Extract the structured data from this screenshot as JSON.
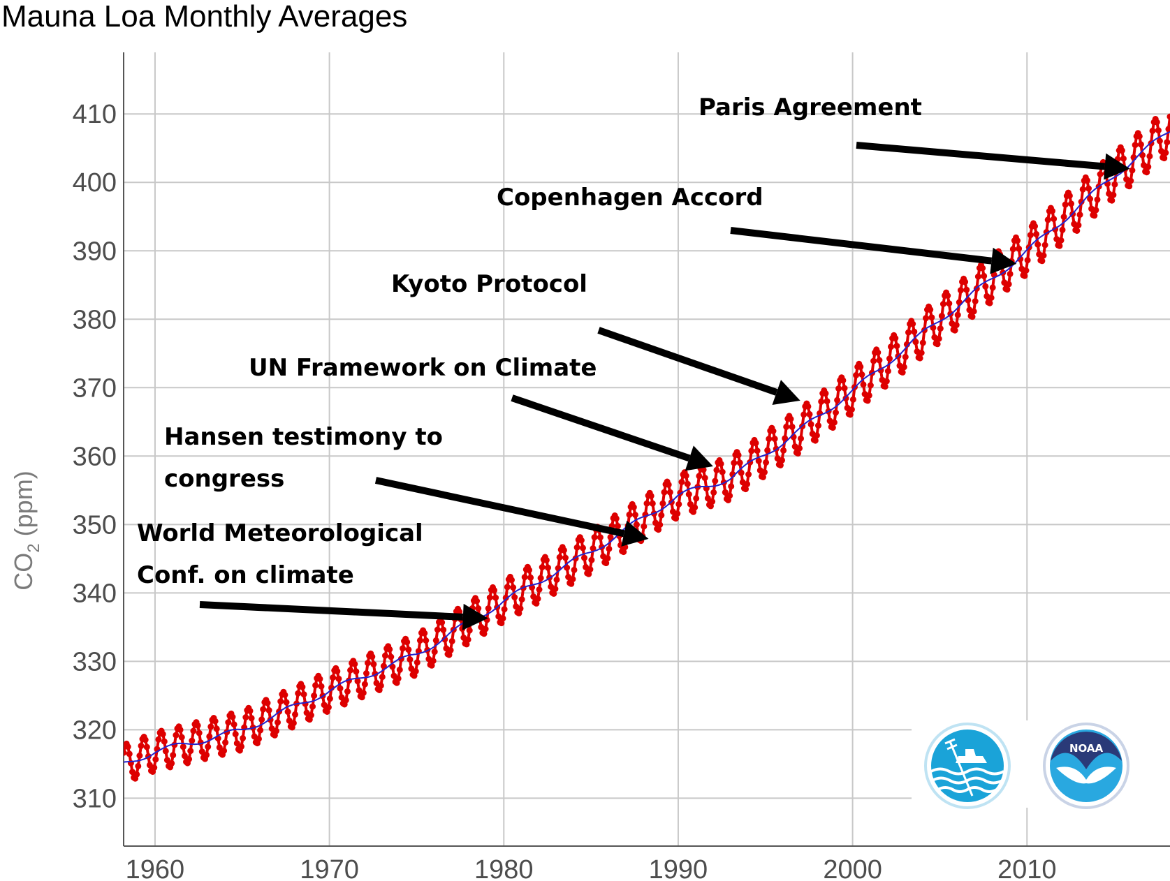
{
  "chart_data": {
    "type": "line",
    "title": "Mauna Loa Monthly Averages",
    "xlabel": "",
    "ylabel": "CO",
    "ylabel_subscript": "2",
    "ylabel_unit": " (ppm)",
    "xlim": [
      1958.2,
      2018.2
    ],
    "ylim": [
      303,
      419
    ],
    "grid": true,
    "x_ticks": [
      {
        "value": 1960,
        "label": "1960"
      },
      {
        "value": 1970,
        "label": "1970"
      },
      {
        "value": 1980,
        "label": "1980"
      },
      {
        "value": 1990,
        "label": "1990"
      },
      {
        "value": 2000,
        "label": "2000"
      },
      {
        "value": 2010,
        "label": "2010"
      }
    ],
    "y_ticks": [
      {
        "value": 310,
        "label": "310"
      },
      {
        "value": 320,
        "label": "320"
      },
      {
        "value": 330,
        "label": "330"
      },
      {
        "value": 340,
        "label": "340"
      },
      {
        "value": 350,
        "label": "350"
      },
      {
        "value": 360,
        "label": "360"
      },
      {
        "value": 370,
        "label": "370"
      },
      {
        "value": 380,
        "label": "380"
      },
      {
        "value": 390,
        "label": "390"
      },
      {
        "value": 400,
        "label": "400"
      },
      {
        "value": 410,
        "label": "410"
      }
    ],
    "series": [
      {
        "role": "monthly-mean",
        "color": "#dd0000",
        "marker": "circle",
        "trend_anchors": {
          "x": [
            1958.2,
            1960,
            1965,
            1970,
            1975,
            1980,
            1985,
            1990,
            1993,
            1997,
            2000,
            2005,
            2010,
            2015,
            2018.2
          ],
          "y": [
            315.0,
            316.8,
            319.9,
            325.7,
            331.0,
            338.8,
            346.0,
            354.2,
            356.8,
            363.8,
            369.5,
            379.9,
            389.9,
            401.0,
            407.6
          ]
        },
        "seasonal_amplitude": [
          {
            "x": 1958,
            "half_range": 2.8
          },
          {
            "x": 2018,
            "half_range": 3.4
          }
        ]
      },
      {
        "role": "deseasonalized-trend",
        "color": "#2222cc",
        "from": "trend_anchors"
      }
    ],
    "annotations": [
      {
        "lines": [
          "Paris Agreement"
        ],
        "points_to_year": 2015.9,
        "points_to_ppm": 402.0
      },
      {
        "lines": [
          "Copenhagen Accord"
        ],
        "points_to_year": 2009.4,
        "points_to_ppm": 388.1
      },
      {
        "lines": [
          "Kyoto Protocol"
        ],
        "points_to_year": 1997.0,
        "points_to_ppm": 368.1
      },
      {
        "lines": [
          "UN Framework on Climate"
        ],
        "points_to_year": 1992.0,
        "points_to_ppm": 358.5
      },
      {
        "lines": [
          "Hansen testimony to",
          "congress"
        ],
        "points_to_year": 1988.3,
        "points_to_ppm": 347.9
      },
      {
        "lines": [
          "World Meteorological",
          "Conf. on climate"
        ],
        "points_to_year": 1979.1,
        "points_to_ppm": 336.3
      }
    ]
  },
  "logos": [
    {
      "name": "scripps-logo",
      "colors": [
        "#1aa3d8",
        "#ffffff"
      ]
    },
    {
      "name": "noaa-logo",
      "text": "NOAA",
      "colors": [
        "#2a3a78",
        "#29a8e0",
        "#ffffff"
      ]
    }
  ]
}
